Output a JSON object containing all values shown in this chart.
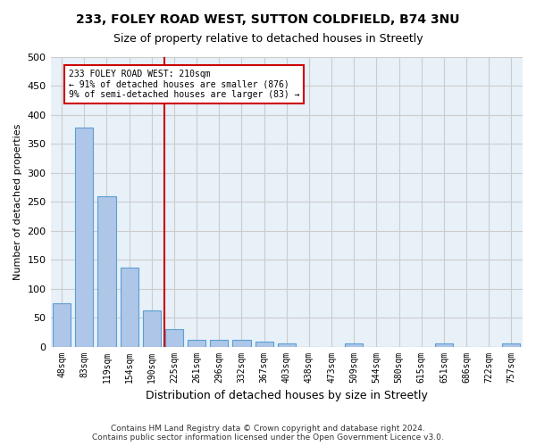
{
  "title_line1": "233, FOLEY ROAD WEST, SUTTON COLDFIELD, B74 3NU",
  "title_line2": "Size of property relative to detached houses in Streetly",
  "xlabel": "Distribution of detached houses by size in Streetly",
  "ylabel": "Number of detached properties",
  "bar_values": [
    75,
    378,
    260,
    136,
    62,
    30,
    11,
    11,
    11,
    8,
    6,
    0,
    0,
    5,
    0,
    0,
    0,
    5,
    0,
    0,
    5
  ],
  "tick_labels": [
    "48sqm",
    "83sqm",
    "119sqm",
    "154sqm",
    "190sqm",
    "225sqm",
    "261sqm",
    "296sqm",
    "332sqm",
    "367sqm",
    "403sqm",
    "438sqm",
    "473sqm",
    "509sqm",
    "544sqm",
    "580sqm",
    "615sqm",
    "651sqm",
    "686sqm",
    "722sqm",
    "757sqm"
  ],
  "bar_color": "#aec6e8",
  "bar_edge_color": "#5a9fd4",
  "vline_color": "#cc0000",
  "annotation_line1": "233 FOLEY ROAD WEST: 210sqm",
  "annotation_line2": "← 91% of detached houses are smaller (876)",
  "annotation_line3": "9% of semi-detached houses are larger (83) →",
  "annotation_box_color": "#cc0000",
  "ylim": [
    0,
    500
  ],
  "yticks": [
    0,
    50,
    100,
    150,
    200,
    250,
    300,
    350,
    400,
    450,
    500
  ],
  "grid_color": "#cccccc",
  "bg_color": "#e8f0f8",
  "footer_line1": "Contains HM Land Registry data © Crown copyright and database right 2024.",
  "footer_line2": "Contains public sector information licensed under the Open Government Licence v3.0.",
  "fig_width": 6.0,
  "fig_height": 5.0
}
